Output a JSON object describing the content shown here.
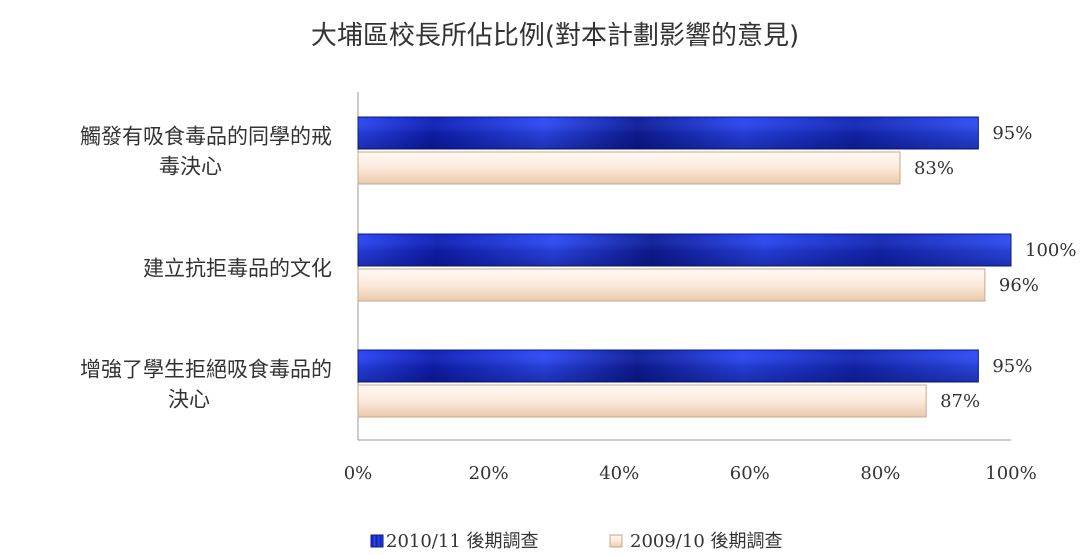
{
  "chart_data": {
    "type": "bar",
    "orientation": "horizontal",
    "title": "大埔區校長所佔比例(對本計劃影響的意見)",
    "categories": [
      "觸發有吸食毒品的同學的戒毒決心",
      "建立抗拒毒品的文化",
      "增強了學生拒絕吸食毒品的決心"
    ],
    "category_lines": [
      [
        "觸發有吸食毒品的同學的戒",
        "毒決心"
      ],
      [
        "建立抗拒毒品的文化"
      ],
      [
        "增強了學生拒絕吸食毒品的",
        "決心"
      ]
    ],
    "series": [
      {
        "name": "2010/11 後期調查",
        "values": [
          95,
          100,
          95
        ],
        "labels": [
          "95%",
          "100%",
          "95%"
        ],
        "color": "#1a2fd6"
      },
      {
        "name": "2009/10 後期調查",
        "values": [
          83,
          96,
          87
        ],
        "labels": [
          "83%",
          "96%",
          "87%"
        ],
        "color": "#fbe8d8"
      }
    ],
    "xlim": [
      0,
      100
    ],
    "ticks": [
      0,
      20,
      40,
      60,
      80,
      100
    ],
    "tick_labels": [
      "0%",
      "20%",
      "40%",
      "60%",
      "80%",
      "100%"
    ],
    "grid": false,
    "legend_position": "bottom"
  }
}
